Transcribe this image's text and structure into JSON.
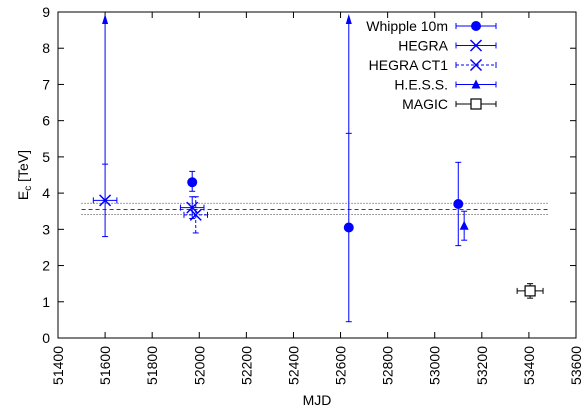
{
  "chart_data": {
    "type": "scatter",
    "xlabel": "MJD",
    "ylabel_main": "E",
    "ylabel_sub": "c",
    "ylabel_unit": " [TeV]",
    "xlim": [
      51400,
      53600
    ],
    "ylim": [
      0,
      9
    ],
    "x_ticks": [
      "51400",
      "51600",
      "51800",
      "52000",
      "52200",
      "52400",
      "52600",
      "52800",
      "53000",
      "53200",
      "53400",
      "53600"
    ],
    "y_ticks": [
      "0",
      "1",
      "2",
      "3",
      "4",
      "5",
      "6",
      "7",
      "8",
      "9"
    ],
    "grid": false,
    "legend_position": "top-right",
    "series": [
      {
        "name": "Whipple 10m",
        "marker": "filled-circle",
        "color": "#0000ff",
        "points": [
          {
            "x": 51970,
            "y": 4.3,
            "xerr": 15,
            "ylo": 4.05,
            "yhi": 4.6
          },
          {
            "x": 52635,
            "y": 3.05,
            "xerr": 0,
            "ylo": 0.45,
            "yhi": 5.65,
            "upper_arrow": true
          },
          {
            "x": 53100,
            "y": 3.7,
            "xerr": 0,
            "ylo": 2.55,
            "yhi": 4.85
          }
        ]
      },
      {
        "name": "HEGRA",
        "marker": "cross",
        "color": "#0000ff",
        "points": [
          {
            "x": 51600,
            "y": 3.8,
            "xerr": 50,
            "ylo": 2.8,
            "yhi": 4.8,
            "upper_arrow": true
          },
          {
            "x": 51970,
            "y": 3.6,
            "xerr": 50,
            "ylo": 3.3,
            "yhi": 3.9
          }
        ]
      },
      {
        "name": "HEGRA CT1",
        "marker": "cross-dashed",
        "color": "#0000ff",
        "points": [
          {
            "x": 51985,
            "y": 3.4,
            "xerr": 50,
            "ylo": 2.9,
            "yhi": 3.9
          }
        ]
      },
      {
        "name": "H.E.S.S.",
        "marker": "filled-triangle",
        "color": "#0000ff",
        "points": [
          {
            "x": 53125,
            "y": 3.1,
            "xerr": 0,
            "ylo": 2.7,
            "yhi": 3.5
          }
        ]
      },
      {
        "name": "MAGIC",
        "marker": "open-square",
        "color": "#000000",
        "points": [
          {
            "x": 53405,
            "y": 1.3,
            "xerr": 55,
            "ylo": 1.1,
            "yhi": 1.5
          }
        ]
      }
    ],
    "hlines": [
      {
        "y": 3.55,
        "style": "dashed"
      },
      {
        "y": 3.41,
        "style": "dotted"
      },
      {
        "y": 3.72,
        "style": "dotted"
      }
    ]
  }
}
